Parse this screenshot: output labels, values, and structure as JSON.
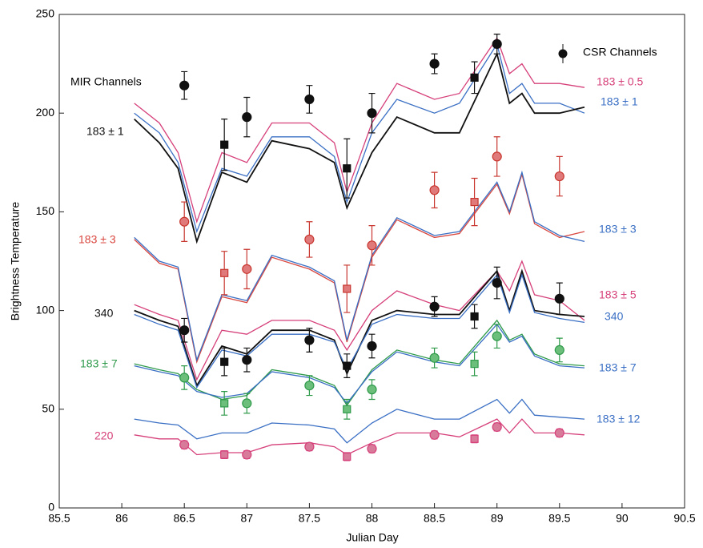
{
  "chart_data": {
    "type": "line",
    "xlabel": "Julian Day",
    "ylabel": "Brightness Temperature",
    "xlim": [
      85.5,
      90.5
    ],
    "ylim": [
      0,
      250
    ],
    "xticks": [
      85.5,
      86,
      86.5,
      87,
      87.5,
      88,
      88.5,
      89,
      89.5,
      90,
      90.5
    ],
    "yticks": [
      0,
      50,
      100,
      150,
      200,
      250
    ],
    "annotations": [
      "MIR Channels",
      "CSR Channels"
    ],
    "x": [
      86.1,
      86.3,
      86.45,
      86.6,
      86.8,
      87.0,
      87.2,
      87.5,
      87.7,
      87.8,
      88.0,
      88.2,
      88.5,
      88.7,
      89.0,
      89.1,
      89.2,
      89.3,
      89.5,
      89.7
    ],
    "series": [
      {
        "name": "183 ± 0.5",
        "color": "#d6407a",
        "values": [
          205,
          195,
          180,
          145,
          180,
          175,
          195,
          195,
          185,
          160,
          195,
          215,
          207,
          210,
          238,
          220,
          225,
          215,
          215,
          213
        ]
      },
      {
        "name": "183 ± 1",
        "color": "#3a6fc4",
        "values": [
          200,
          190,
          175,
          140,
          172,
          168,
          188,
          188,
          178,
          155,
          190,
          207,
          200,
          205,
          235,
          210,
          215,
          205,
          205,
          200
        ]
      },
      {
        "name": "183 ± 1",
        "color": "#111111",
        "values": [
          197,
          185,
          172,
          135,
          170,
          165,
          186,
          182,
          175,
          152,
          180,
          198,
          190,
          190,
          230,
          205,
          210,
          200,
          200,
          203
        ]
      },
      {
        "name": "183 ± 3",
        "color": "#d9473f",
        "values": [
          136,
          124,
          121,
          74,
          107,
          104,
          127,
          121,
          114,
          84,
          127,
          146,
          137,
          139,
          164,
          149,
          169,
          144,
          137,
          140
        ]
      },
      {
        "name": "183 ± 3",
        "color": "#3a6fc4",
        "values": [
          137,
          125,
          122,
          75,
          108,
          105,
          128,
          122,
          115,
          85,
          128,
          147,
          138,
          140,
          165,
          150,
          170,
          145,
          138,
          135
        ]
      },
      {
        "name": "183 ± 5",
        "color": "#d6407a",
        "values": [
          103,
          98,
          95,
          65,
          90,
          88,
          95,
          95,
          90,
          80,
          100,
          110,
          103,
          100,
          120,
          110,
          125,
          108,
          105,
          95
        ]
      },
      {
        "name": "340",
        "color": "#111111",
        "values": [
          100,
          95,
          92,
          62,
          82,
          78,
          90,
          90,
          85,
          68,
          95,
          100,
          98,
          98,
          120,
          100,
          120,
          100,
          98,
          97
        ]
      },
      {
        "name": "340",
        "color": "#3a6fc4",
        "values": [
          98,
          93,
          90,
          61,
          80,
          77,
          88,
          88,
          84,
          70,
          93,
          98,
          96,
          96,
          118,
          99,
          118,
          99,
          96,
          94
        ]
      },
      {
        "name": "183 ± 7",
        "color": "#2e9a4a",
        "values": [
          73,
          70,
          68,
          60,
          55,
          57,
          70,
          67,
          62,
          52,
          70,
          80,
          75,
          73,
          95,
          85,
          88,
          78,
          73,
          72
        ]
      },
      {
        "name": "183 ± 7",
        "color": "#3a6fc4",
        "values": [
          72,
          69,
          67,
          59,
          56,
          58,
          69,
          66,
          61,
          53,
          69,
          79,
          74,
          72,
          93,
          84,
          87,
          77,
          72,
          71
        ]
      },
      {
        "name": "183 ± 12",
        "color": "#3a6fc4",
        "values": [
          45,
          43,
          42,
          35,
          38,
          38,
          43,
          42,
          40,
          33,
          43,
          50,
          45,
          45,
          55,
          48,
          55,
          47,
          46,
          45
        ]
      },
      {
        "name": "220",
        "color": "#d6407a",
        "values": [
          37,
          35,
          35,
          27,
          28,
          28,
          32,
          33,
          31,
          27,
          33,
          38,
          38,
          36,
          45,
          38,
          45,
          38,
          38,
          37
        ]
      }
    ],
    "points": [
      {
        "marker": "circle",
        "color": "#111111",
        "fill": "#111111",
        "x": [
          86.5,
          87,
          87.5,
          88,
          88.5,
          89
        ],
        "values": [
          214,
          198,
          207,
          200,
          225,
          235
        ],
        "errors": [
          7,
          10,
          7,
          10,
          5,
          5
        ]
      },
      {
        "marker": "square",
        "color": "#111111",
        "fill": "#111111",
        "x": [
          86.82,
          87.8,
          88.82
        ],
        "values": [
          184,
          172,
          218
        ],
        "errors": [
          13,
          15,
          8
        ]
      },
      {
        "marker": "circle",
        "color": "#c8362f",
        "fill": "#e07a7a",
        "x": [
          86.5,
          87,
          87.5,
          88,
          88.5,
          89,
          89.5
        ],
        "values": [
          145,
          121,
          136,
          133,
          161,
          178,
          168
        ],
        "errors": [
          10,
          10,
          9,
          10,
          9,
          10,
          10
        ]
      },
      {
        "marker": "square",
        "color": "#c8362f",
        "fill": "#e07a7a",
        "x": [
          86.82,
          87.8,
          88.82
        ],
        "values": [
          119,
          111,
          155
        ],
        "errors": [
          11,
          12,
          12
        ]
      },
      {
        "marker": "circle",
        "color": "#111111",
        "fill": "#111111",
        "x": [
          86.5,
          87,
          87.5,
          88,
          88.5,
          89,
          89.5
        ],
        "values": [
          90,
          75,
          85,
          82,
          102,
          114,
          106
        ],
        "errors": [
          6,
          6,
          6,
          6,
          5,
          8,
          8
        ]
      },
      {
        "marker": "square",
        "color": "#111111",
        "fill": "#111111",
        "x": [
          86.82,
          87.8,
          88.82
        ],
        "values": [
          74,
          72,
          97
        ],
        "errors": [
          7,
          6,
          6
        ]
      },
      {
        "marker": "circle",
        "color": "#2e9a4a",
        "fill": "#6cbf7a",
        "x": [
          86.5,
          87,
          87.5,
          88,
          88.5,
          89,
          89.5
        ],
        "values": [
          66,
          53,
          62,
          60,
          76,
          87,
          80
        ],
        "errors": [
          6,
          5,
          5,
          5,
          5,
          6,
          6
        ]
      },
      {
        "marker": "square",
        "color": "#2e9a4a",
        "fill": "#6cbf7a",
        "x": [
          86.82,
          87.8,
          88.82
        ],
        "values": [
          53,
          50,
          73
        ],
        "errors": [
          6,
          5,
          6
        ]
      },
      {
        "marker": "circle",
        "color": "#d6407a",
        "fill": "#d87a9a",
        "x": [
          86.5,
          87,
          87.5,
          88,
          88.5,
          89,
          89.5
        ],
        "values": [
          32,
          27,
          31,
          30,
          37,
          41,
          38
        ],
        "errors": [
          2,
          2,
          2,
          2,
          2,
          2,
          2
        ]
      },
      {
        "marker": "square",
        "color": "#d6407a",
        "fill": "#d87a9a",
        "x": [
          86.82,
          87.8,
          88.82
        ],
        "values": [
          27,
          26,
          35
        ],
        "errors": [
          2,
          2,
          2
        ]
      }
    ]
  }
}
